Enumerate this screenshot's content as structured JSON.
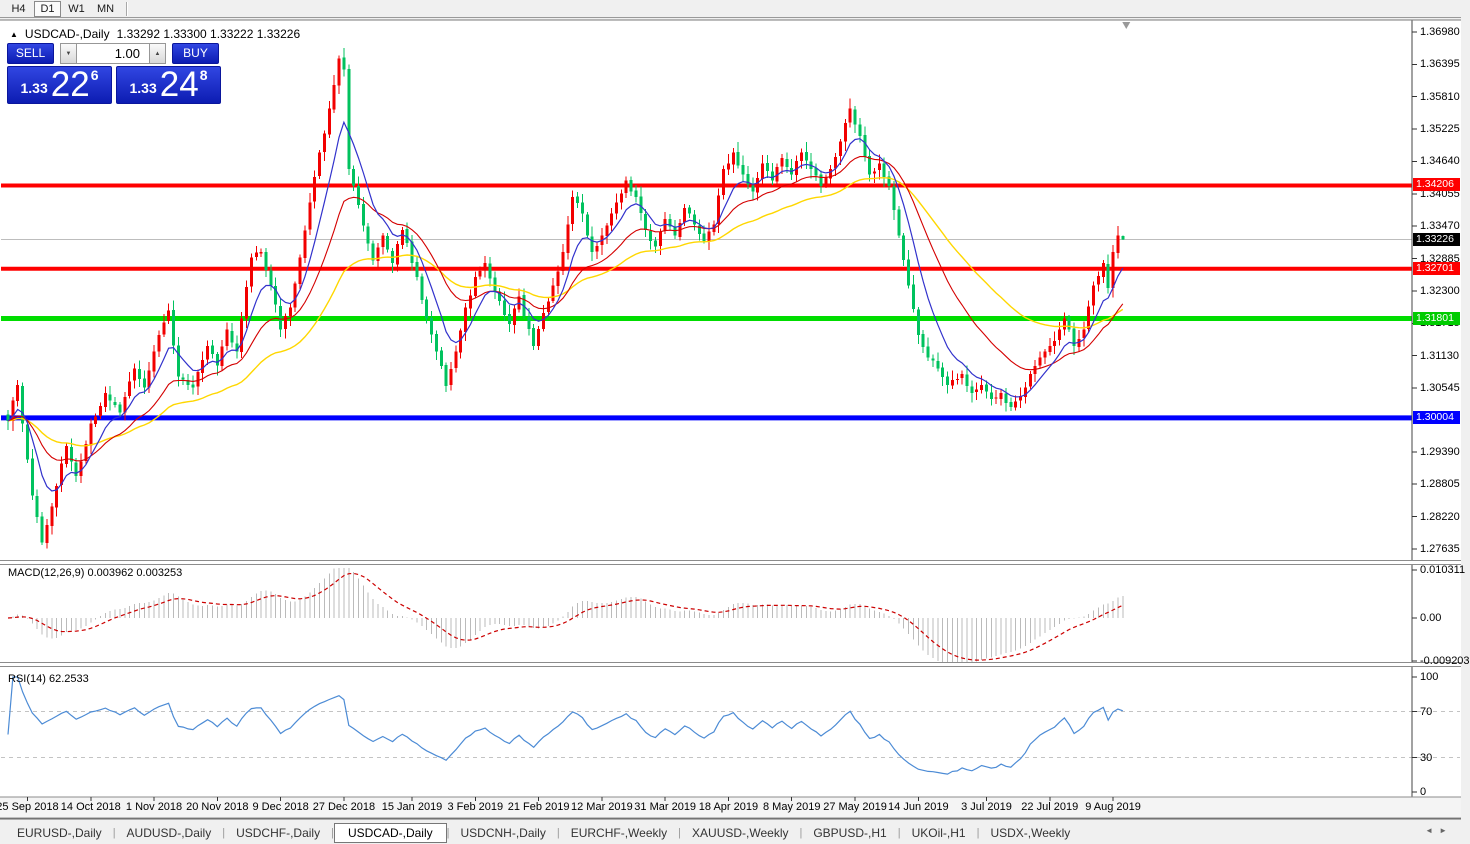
{
  "icons": {
    "collapse_arrow": "▲",
    "spinner_down": "▼",
    "spinner_up": "▲",
    "scroll_left": "◄",
    "scroll_right": "►"
  },
  "toolbar": {
    "timeframes": [
      "H4",
      "D1",
      "W1",
      "MN"
    ],
    "active": "D1"
  },
  "chart_header": {
    "symbol": "USDCAD-,Daily",
    "ohlc": "1.33292 1.33300 1.33222 1.33226"
  },
  "trade_panel": {
    "sell_label": "SELL",
    "buy_label": "BUY",
    "volume": "1.00",
    "sell_price": {
      "prefix": "1.33",
      "big": "22",
      "sup": "6"
    },
    "buy_price": {
      "prefix": "1.33",
      "big": "24",
      "sup": "8"
    }
  },
  "macd_panel": {
    "label": "MACD(12,26,9) 0.003962 0.003253"
  },
  "rsi_panel": {
    "label": "RSI(14) 62.2533"
  },
  "tab_bar": {
    "tabs": [
      "EURUSD-,Daily",
      "AUDUSD-,Daily",
      "USDCHF-,Daily",
      "USDCAD-,Daily",
      "USDCNH-,Daily",
      "EURCHF-,Weekly",
      "XAUUSD-,Weekly",
      "GBPUSD-,H1",
      "UKOil-,H1",
      "USDX-,Weekly"
    ],
    "active_index": 3
  },
  "chart_data": {
    "type": "candlestick",
    "symbol": "USDCAD-",
    "timeframe": "Daily",
    "bars": 230,
    "last_candle": {
      "open": 1.33292,
      "high": 1.333,
      "low": 1.33222,
      "close": 1.33226
    },
    "current_price": 1.33226,
    "candle_colors": {
      "bull": "#F20000",
      "bear": "#00C25E"
    },
    "price_ticks": [
      "1.36980",
      "1.36395",
      "1.35810",
      "1.35225",
      "1.34640",
      "1.34055",
      "1.33470",
      "1.32885",
      "1.32300",
      "1.31715",
      "1.31130",
      "1.30545",
      "1.29390",
      "1.28805",
      "1.28220",
      "1.27635"
    ],
    "price_tags": [
      {
        "text": "1.34206",
        "bg": "#FF0000"
      },
      {
        "text": "1.33226",
        "bg": "#000000"
      },
      {
        "text": "1.32701",
        "bg": "#FF0000"
      },
      {
        "text": "1.31801",
        "bg": "#00CC00"
      },
      {
        "text": "1.30004",
        "bg": "#0000FF"
      }
    ],
    "levels": [
      {
        "price": 1.34206,
        "color": "#FF0000",
        "thickness": 4,
        "name": "resistance-1.34206"
      },
      {
        "price": 1.32701,
        "color": "#FF0000",
        "thickness": 4,
        "name": "support-1.32701"
      },
      {
        "price": 1.31801,
        "color": "#00DD00",
        "thickness": 5,
        "name": "support-1.31801"
      },
      {
        "price": 1.30004,
        "color": "#0000FF",
        "thickness": 5,
        "name": "support-1.30004"
      }
    ],
    "moving_averages": [
      {
        "name": "fast",
        "period": 8,
        "color": "#3232CC",
        "width": 1.2
      },
      {
        "name": "medium",
        "period": 21,
        "color": "#D40000",
        "width": 1.1
      },
      {
        "name": "slow",
        "period": 45,
        "color": "#FFD700",
        "width": 1.4
      }
    ],
    "macd": {
      "params": "12,26,9",
      "value": "0.003962",
      "signal_value": "0.003253",
      "ticks": [
        "0.010311",
        "0.00",
        "-0.009203"
      ],
      "hist_color": "#BBBBBB",
      "signal_color": "#CC0000"
    },
    "rsi": {
      "period": 14,
      "value": "62.2533",
      "ticks": [
        "100",
        "70",
        "30",
        "0"
      ],
      "levels": [
        70,
        30
      ],
      "color": "#4C8BD5"
    },
    "close_anchors": [
      [
        0,
        1.2995
      ],
      [
        2,
        1.306
      ],
      [
        3,
        1.299
      ],
      [
        5,
        1.286
      ],
      [
        7,
        1.2775
      ],
      [
        9,
        1.284
      ],
      [
        12,
        1.295
      ],
      [
        14,
        1.2895
      ],
      [
        17,
        1.299
      ],
      [
        20,
        1.3045
      ],
      [
        23,
        1.301
      ],
      [
        26,
        1.309
      ],
      [
        28,
        1.3055
      ],
      [
        31,
        1.315
      ],
      [
        33,
        1.3195
      ],
      [
        35,
        1.3075
      ],
      [
        38,
        1.3055
      ],
      [
        41,
        1.313
      ],
      [
        43,
        1.3095
      ],
      [
        45,
        1.316
      ],
      [
        47,
        1.312
      ],
      [
        50,
        1.329
      ],
      [
        52,
        1.33
      ],
      [
        54,
        1.324
      ],
      [
        56,
        1.316
      ],
      [
        58,
        1.32
      ],
      [
        60,
        1.329
      ],
      [
        62,
        1.339
      ],
      [
        64,
        1.348
      ],
      [
        66,
        1.356
      ],
      [
        68,
        1.365
      ],
      [
        69,
        1.363
      ],
      [
        70,
        1.345
      ],
      [
        72,
        1.3385
      ],
      [
        75,
        1.3285
      ],
      [
        77,
        1.333
      ],
      [
        79,
        1.328
      ],
      [
        81,
        1.334
      ],
      [
        84,
        1.3255
      ],
      [
        86,
        1.318
      ],
      [
        88,
        1.312
      ],
      [
        90,
        1.3058
      ],
      [
        92,
        1.312
      ],
      [
        94,
        1.32
      ],
      [
        96,
        1.3255
      ],
      [
        98,
        1.328
      ],
      [
        100,
        1.323
      ],
      [
        103,
        1.317
      ],
      [
        105,
        1.322
      ],
      [
        108,
        1.313
      ],
      [
        110,
        1.319
      ],
      [
        112,
        1.324
      ],
      [
        114,
        1.33
      ],
      [
        116,
        1.34
      ],
      [
        118,
        1.337
      ],
      [
        120,
        1.33
      ],
      [
        122,
        1.333
      ],
      [
        125,
        1.339
      ],
      [
        127,
        1.343
      ],
      [
        129,
        1.34
      ],
      [
        131,
        1.334
      ],
      [
        133,
        1.331
      ],
      [
        135,
        1.336
      ],
      [
        137,
        1.333
      ],
      [
        139,
        1.338
      ],
      [
        141,
        1.335
      ],
      [
        143,
        1.332
      ],
      [
        145,
        1.335
      ],
      [
        147,
        1.345
      ],
      [
        149,
        1.348
      ],
      [
        151,
        1.344
      ],
      [
        153,
        1.341
      ],
      [
        155,
        1.346
      ],
      [
        157,
        1.343
      ],
      [
        159,
        1.347
      ],
      [
        161,
        1.344
      ],
      [
        163,
        1.348
      ],
      [
        165,
        1.345
      ],
      [
        167,
        1.342
      ],
      [
        169,
        1.345
      ],
      [
        171,
        1.35
      ],
      [
        173,
        1.356
      ],
      [
        175,
        1.351
      ],
      [
        177,
        1.344
      ],
      [
        179,
        1.346
      ],
      [
        181,
        1.342
      ],
      [
        183,
        1.333
      ],
      [
        185,
        1.324
      ],
      [
        187,
        1.315
      ],
      [
        189,
        1.311
      ],
      [
        191,
        1.309
      ],
      [
        193,
        1.306
      ],
      [
        196,
        1.308
      ],
      [
        198,
        1.3045
      ],
      [
        200,
        1.306
      ],
      [
        202,
        1.3035
      ],
      [
        204,
        1.3045
      ],
      [
        206,
        1.302
      ],
      [
        208,
        1.304
      ],
      [
        210,
        1.308
      ],
      [
        212,
        1.311
      ],
      [
        214,
        1.313
      ],
      [
        216,
        1.316
      ],
      [
        217,
        1.318
      ],
      [
        219,
        1.313
      ],
      [
        221,
        1.316
      ],
      [
        223,
        1.324
      ],
      [
        225,
        1.328
      ],
      [
        226,
        1.3235
      ],
      [
        227,
        1.33
      ],
      [
        228,
        1.333
      ],
      [
        229,
        1.33226
      ]
    ],
    "time_labels": [
      {
        "bar": 4,
        "text": "25 Sep 2018"
      },
      {
        "bar": 17,
        "text": "14 Oct 2018"
      },
      {
        "bar": 30,
        "text": "1 Nov 2018"
      },
      {
        "bar": 43,
        "text": "20 Nov 2018"
      },
      {
        "bar": 56,
        "text": "9 Dec 2018"
      },
      {
        "bar": 69,
        "text": "27 Dec 2018"
      },
      {
        "bar": 83,
        "text": "15 Jan 2019"
      },
      {
        "bar": 96,
        "text": "3 Feb 2019"
      },
      {
        "bar": 109,
        "text": "21 Feb 2019"
      },
      {
        "bar": 122,
        "text": "12 Mar 2019"
      },
      {
        "bar": 135,
        "text": "31 Mar 2019"
      },
      {
        "bar": 148,
        "text": "18 Apr 2019"
      },
      {
        "bar": 161,
        "text": "8 May 2019"
      },
      {
        "bar": 174,
        "text": "27 May 2019"
      },
      {
        "bar": 187,
        "text": "14 Jun 2019"
      },
      {
        "bar": 201,
        "text": "3 Jul 2019"
      },
      {
        "bar": 214,
        "text": "22 Jul 2019"
      },
      {
        "bar": 227,
        "text": "9 Aug 2019"
      }
    ]
  }
}
